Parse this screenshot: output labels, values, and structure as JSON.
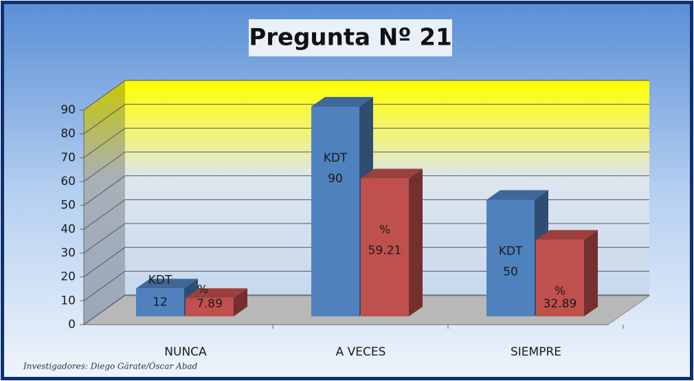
{
  "chart_data": {
    "type": "bar",
    "title": "Pregunta Nº 21",
    "categories": [
      "NUNCA",
      "A VECES",
      "SIEMPRE"
    ],
    "series": [
      {
        "name": "KDT",
        "color": "#4f81bd",
        "values": [
          12,
          90,
          50
        ]
      },
      {
        "name": "%",
        "color": "#c0504d",
        "values": [
          7.89,
          59.21,
          32.89
        ]
      }
    ],
    "ylim": [
      0,
      90
    ],
    "yticks": [
      0,
      10,
      20,
      30,
      40,
      50,
      60,
      70,
      80,
      90
    ],
    "grid": true,
    "source": "Investigadores: Diego Gárate/Óscar Abad"
  }
}
